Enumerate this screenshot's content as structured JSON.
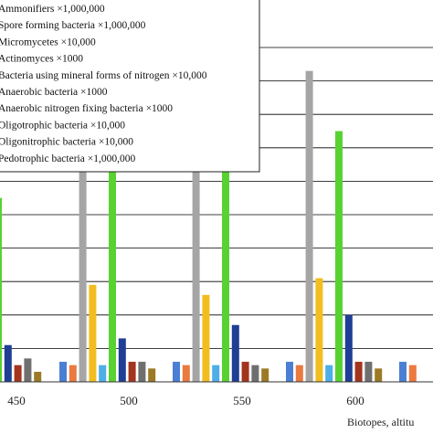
{
  "chart_data": {
    "type": "bar",
    "title": "",
    "ylabel": "",
    "xlabel": "Biotopes, altitu",
    "categories": [
      "450",
      "500",
      "550",
      "600",
      ""
    ],
    "ylim": [
      0,
      10
    ],
    "grid": true,
    "legend_position": "top-left",
    "series": [
      {
        "name": "Ammonifiers ×1,000,000",
        "color": "#4a7fd4",
        "values": [
          0.0,
          0.6,
          0.6,
          0.6,
          0.6
        ]
      },
      {
        "name": "Spore forming bacteria ×1,000,000",
        "color": "#ea7a3f",
        "values": [
          0.5,
          0.5,
          0.5,
          0.5,
          0.5
        ]
      },
      {
        "name": "Micromycetes ×10,000",
        "color": "#a5a5a5",
        "values": [
          0.0,
          9.3,
          9.3,
          9.3,
          0.0
        ]
      },
      {
        "name": "Actinomyces ×1000",
        "color": "#f2be1f",
        "values": [
          2.2,
          2.9,
          2.6,
          3.1,
          0.0
        ]
      },
      {
        "name": "Bacteria using mineral forms of nitrogen ×10,000",
        "color": "#4daee8",
        "values": [
          0.5,
          0.5,
          0.5,
          0.5,
          0.0
        ]
      },
      {
        "name": "Anaerobic bacteria ×1000",
        "color": "#58d232",
        "values": [
          5.5,
          7.4,
          7.5,
          7.5,
          0.0
        ]
      },
      {
        "name": "Anaerobic nitrogen fixing bacteria ×1000",
        "color": "#1f3f94",
        "values": [
          1.1,
          1.3,
          1.7,
          2.0,
          0.0
        ]
      },
      {
        "name": "Oligotrophic bacteria ×10,000",
        "color": "#a3341e",
        "values": [
          0.5,
          0.6,
          0.6,
          0.6,
          0.0
        ]
      },
      {
        "name": "Oligonitrophic bacteria ×10,000",
        "color": "#6f6f6f",
        "values": [
          0.7,
          0.6,
          0.5,
          0.6,
          0.0
        ]
      },
      {
        "name": "Pedotrophic bacteria ×1,000,000",
        "color": "#9c7a25",
        "values": [
          0.3,
          0.4,
          0.4,
          0.4,
          0.0
        ]
      }
    ]
  }
}
